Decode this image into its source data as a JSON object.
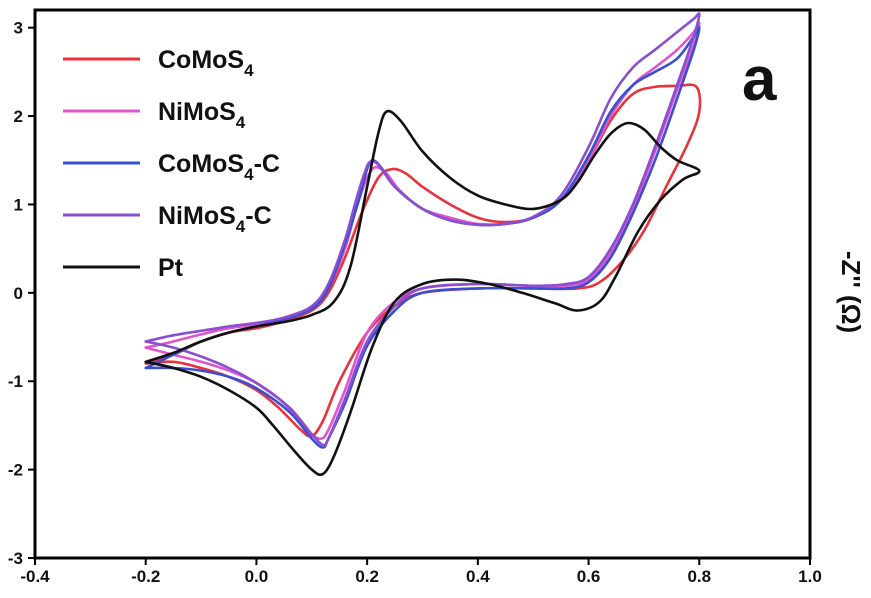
{
  "chart_data": {
    "type": "line",
    "panel_label": "a",
    "ylabel": "-Z'' (Ω)",
    "xlabel": "",
    "xlim": [
      -0.4,
      1.0
    ],
    "ylim": [
      -3,
      3.2
    ],
    "xticks": [
      "-0.4",
      "-0.2",
      "0.0",
      "0.2",
      "0.4",
      "0.6",
      "0.8",
      "1.0"
    ],
    "yticks": [
      "-3",
      "-2",
      "-1",
      "0",
      "1",
      "2",
      "3"
    ],
    "legend_position": "top-left",
    "series": [
      {
        "name": "CoMoS4",
        "label_main": "CoMoS",
        "label_sub": "4",
        "label_tail": "",
        "color": "#e8333c",
        "points": [
          [
            -0.2,
            -0.8
          ],
          [
            -0.15,
            -0.7
          ],
          [
            -0.1,
            -0.55
          ],
          [
            -0.05,
            -0.45
          ],
          [
            0.0,
            -0.4
          ],
          [
            0.05,
            -0.32
          ],
          [
            0.1,
            -0.2
          ],
          [
            0.13,
            0.0
          ],
          [
            0.16,
            0.4
          ],
          [
            0.19,
            0.9
          ],
          [
            0.22,
            1.3
          ],
          [
            0.245,
            1.4
          ],
          [
            0.27,
            1.35
          ],
          [
            0.3,
            1.2
          ],
          [
            0.35,
            1.0
          ],
          [
            0.4,
            0.85
          ],
          [
            0.45,
            0.8
          ],
          [
            0.5,
            0.85
          ],
          [
            0.55,
            1.05
          ],
          [
            0.6,
            1.5
          ],
          [
            0.64,
            1.95
          ],
          [
            0.68,
            2.25
          ],
          [
            0.72,
            2.33
          ],
          [
            0.76,
            2.34
          ],
          [
            0.795,
            2.33
          ],
          [
            0.8,
            2.05
          ],
          [
            0.78,
            1.7
          ],
          [
            0.74,
            1.2
          ],
          [
            0.7,
            0.7
          ],
          [
            0.66,
            0.35
          ],
          [
            0.62,
            0.12
          ],
          [
            0.58,
            0.05
          ],
          [
            0.5,
            0.05
          ],
          [
            0.4,
            0.05
          ],
          [
            0.3,
            0.0
          ],
          [
            0.25,
            -0.15
          ],
          [
            0.2,
            -0.45
          ],
          [
            0.15,
            -1.0
          ],
          [
            0.12,
            -1.45
          ],
          [
            0.1,
            -1.62
          ],
          [
            0.08,
            -1.55
          ],
          [
            0.04,
            -1.3
          ],
          [
            0.0,
            -1.1
          ],
          [
            -0.05,
            -0.95
          ],
          [
            -0.1,
            -0.85
          ],
          [
            -0.15,
            -0.78
          ],
          [
            -0.2,
            -0.8
          ]
        ]
      },
      {
        "name": "NiMoS4",
        "label_main": "NiMoS",
        "label_sub": "4",
        "label_tail": "",
        "color": "#e055cc",
        "points": [
          [
            -0.2,
            -0.62
          ],
          [
            -0.15,
            -0.55
          ],
          [
            -0.1,
            -0.47
          ],
          [
            -0.05,
            -0.4
          ],
          [
            0.0,
            -0.36
          ],
          [
            0.05,
            -0.3
          ],
          [
            0.1,
            -0.18
          ],
          [
            0.13,
            0.05
          ],
          [
            0.16,
            0.5
          ],
          [
            0.18,
            0.95
          ],
          [
            0.2,
            1.3
          ],
          [
            0.215,
            1.42
          ],
          [
            0.235,
            1.35
          ],
          [
            0.26,
            1.15
          ],
          [
            0.3,
            0.95
          ],
          [
            0.35,
            0.85
          ],
          [
            0.4,
            0.78
          ],
          [
            0.45,
            0.78
          ],
          [
            0.5,
            0.85
          ],
          [
            0.55,
            1.05
          ],
          [
            0.6,
            1.5
          ],
          [
            0.64,
            2.0
          ],
          [
            0.68,
            2.35
          ],
          [
            0.72,
            2.55
          ],
          [
            0.76,
            2.75
          ],
          [
            0.79,
            2.95
          ],
          [
            0.8,
            3.05
          ],
          [
            0.79,
            2.8
          ],
          [
            0.76,
            2.3
          ],
          [
            0.72,
            1.6
          ],
          [
            0.68,
            0.95
          ],
          [
            0.64,
            0.45
          ],
          [
            0.6,
            0.15
          ],
          [
            0.56,
            0.08
          ],
          [
            0.5,
            0.08
          ],
          [
            0.4,
            0.1
          ],
          [
            0.3,
            0.05
          ],
          [
            0.25,
            -0.1
          ],
          [
            0.2,
            -0.45
          ],
          [
            0.16,
            -1.1
          ],
          [
            0.13,
            -1.55
          ],
          [
            0.115,
            -1.65
          ],
          [
            0.09,
            -1.55
          ],
          [
            0.05,
            -1.25
          ],
          [
            0.0,
            -1.02
          ],
          [
            -0.05,
            -0.88
          ],
          [
            -0.1,
            -0.78
          ],
          [
            -0.15,
            -0.7
          ],
          [
            -0.2,
            -0.62
          ]
        ]
      },
      {
        "name": "CoMoS4-C",
        "label_main": "CoMoS",
        "label_sub": "4",
        "label_tail": "-C",
        "color": "#3a4fd0",
        "points": [
          [
            -0.2,
            -0.85
          ],
          [
            -0.15,
            -0.7
          ],
          [
            -0.1,
            -0.55
          ],
          [
            -0.05,
            -0.45
          ],
          [
            0.0,
            -0.38
          ],
          [
            0.05,
            -0.3
          ],
          [
            0.1,
            -0.18
          ],
          [
            0.13,
            0.05
          ],
          [
            0.16,
            0.55
          ],
          [
            0.185,
            1.05
          ],
          [
            0.2,
            1.4
          ],
          [
            0.21,
            1.5
          ],
          [
            0.225,
            1.42
          ],
          [
            0.25,
            1.2
          ],
          [
            0.3,
            0.95
          ],
          [
            0.35,
            0.82
          ],
          [
            0.4,
            0.77
          ],
          [
            0.45,
            0.78
          ],
          [
            0.5,
            0.85
          ],
          [
            0.55,
            1.05
          ],
          [
            0.6,
            1.55
          ],
          [
            0.64,
            2.05
          ],
          [
            0.68,
            2.35
          ],
          [
            0.72,
            2.5
          ],
          [
            0.76,
            2.65
          ],
          [
            0.79,
            2.9
          ],
          [
            0.8,
            3.0
          ],
          [
            0.79,
            2.75
          ],
          [
            0.76,
            2.2
          ],
          [
            0.72,
            1.5
          ],
          [
            0.68,
            0.9
          ],
          [
            0.64,
            0.4
          ],
          [
            0.6,
            0.12
          ],
          [
            0.56,
            0.05
          ],
          [
            0.5,
            0.05
          ],
          [
            0.4,
            0.05
          ],
          [
            0.3,
            0.0
          ],
          [
            0.25,
            -0.2
          ],
          [
            0.2,
            -0.6
          ],
          [
            0.16,
            -1.25
          ],
          [
            0.13,
            -1.65
          ],
          [
            0.12,
            -1.75
          ],
          [
            0.1,
            -1.65
          ],
          [
            0.06,
            -1.35
          ],
          [
            0.0,
            -1.08
          ],
          [
            -0.05,
            -0.95
          ],
          [
            -0.1,
            -0.88
          ],
          [
            -0.15,
            -0.85
          ],
          [
            -0.2,
            -0.85
          ]
        ]
      },
      {
        "name": "NiMoS4-C",
        "label_main": "NiMoS",
        "label_sub": "4",
        "label_tail": "-C",
        "color": "#8a4fd0",
        "points": [
          [
            -0.2,
            -0.55
          ],
          [
            -0.15,
            -0.48
          ],
          [
            -0.1,
            -0.43
          ],
          [
            -0.05,
            -0.38
          ],
          [
            0.0,
            -0.34
          ],
          [
            0.05,
            -0.28
          ],
          [
            0.1,
            -0.15
          ],
          [
            0.13,
            0.1
          ],
          [
            0.16,
            0.6
          ],
          [
            0.18,
            1.05
          ],
          [
            0.195,
            1.35
          ],
          [
            0.205,
            1.48
          ],
          [
            0.22,
            1.45
          ],
          [
            0.25,
            1.2
          ],
          [
            0.3,
            0.95
          ],
          [
            0.35,
            0.82
          ],
          [
            0.4,
            0.77
          ],
          [
            0.45,
            0.78
          ],
          [
            0.5,
            0.86
          ],
          [
            0.55,
            1.1
          ],
          [
            0.6,
            1.65
          ],
          [
            0.64,
            2.2
          ],
          [
            0.68,
            2.55
          ],
          [
            0.72,
            2.75
          ],
          [
            0.76,
            2.95
          ],
          [
            0.79,
            3.1
          ],
          [
            0.8,
            3.15
          ],
          [
            0.79,
            2.9
          ],
          [
            0.76,
            2.35
          ],
          [
            0.72,
            1.65
          ],
          [
            0.68,
            1.0
          ],
          [
            0.64,
            0.5
          ],
          [
            0.6,
            0.18
          ],
          [
            0.56,
            0.1
          ],
          [
            0.5,
            0.08
          ],
          [
            0.4,
            0.1
          ],
          [
            0.3,
            0.05
          ],
          [
            0.25,
            -0.15
          ],
          [
            0.2,
            -0.55
          ],
          [
            0.16,
            -1.2
          ],
          [
            0.13,
            -1.65
          ],
          [
            0.12,
            -1.72
          ],
          [
            0.1,
            -1.6
          ],
          [
            0.06,
            -1.3
          ],
          [
            0.0,
            -1.02
          ],
          [
            -0.05,
            -0.85
          ],
          [
            -0.1,
            -0.72
          ],
          [
            -0.15,
            -0.62
          ],
          [
            -0.2,
            -0.55
          ]
        ]
      },
      {
        "name": "Pt",
        "label_main": "Pt",
        "label_sub": "",
        "label_tail": "",
        "color": "#111111",
        "points": [
          [
            -0.2,
            -0.78
          ],
          [
            -0.15,
            -0.68
          ],
          [
            -0.1,
            -0.55
          ],
          [
            -0.05,
            -0.45
          ],
          [
            0.0,
            -0.38
          ],
          [
            0.05,
            -0.33
          ],
          [
            0.1,
            -0.25
          ],
          [
            0.14,
            -0.1
          ],
          [
            0.17,
            0.3
          ],
          [
            0.2,
            1.2
          ],
          [
            0.22,
            1.8
          ],
          [
            0.235,
            2.05
          ],
          [
            0.26,
            1.95
          ],
          [
            0.3,
            1.6
          ],
          [
            0.35,
            1.3
          ],
          [
            0.4,
            1.1
          ],
          [
            0.45,
            1.0
          ],
          [
            0.5,
            0.95
          ],
          [
            0.55,
            1.05
          ],
          [
            0.58,
            1.25
          ],
          [
            0.61,
            1.55
          ],
          [
            0.64,
            1.8
          ],
          [
            0.67,
            1.92
          ],
          [
            0.7,
            1.85
          ],
          [
            0.73,
            1.65
          ],
          [
            0.76,
            1.5
          ],
          [
            0.8,
            1.38
          ],
          [
            0.77,
            1.28
          ],
          [
            0.73,
            1.05
          ],
          [
            0.69,
            0.7
          ],
          [
            0.65,
            0.2
          ],
          [
            0.62,
            -0.1
          ],
          [
            0.58,
            -0.2
          ],
          [
            0.54,
            -0.12
          ],
          [
            0.48,
            0.0
          ],
          [
            0.42,
            0.1
          ],
          [
            0.36,
            0.15
          ],
          [
            0.3,
            0.1
          ],
          [
            0.25,
            -0.1
          ],
          [
            0.21,
            -0.6
          ],
          [
            0.17,
            -1.35
          ],
          [
            0.14,
            -1.85
          ],
          [
            0.12,
            -2.05
          ],
          [
            0.1,
            -2.0
          ],
          [
            0.07,
            -1.8
          ],
          [
            0.03,
            -1.5
          ],
          [
            0.0,
            -1.3
          ],
          [
            -0.05,
            -1.1
          ],
          [
            -0.1,
            -0.95
          ],
          [
            -0.15,
            -0.85
          ],
          [
            -0.2,
            -0.78
          ]
        ]
      }
    ]
  }
}
